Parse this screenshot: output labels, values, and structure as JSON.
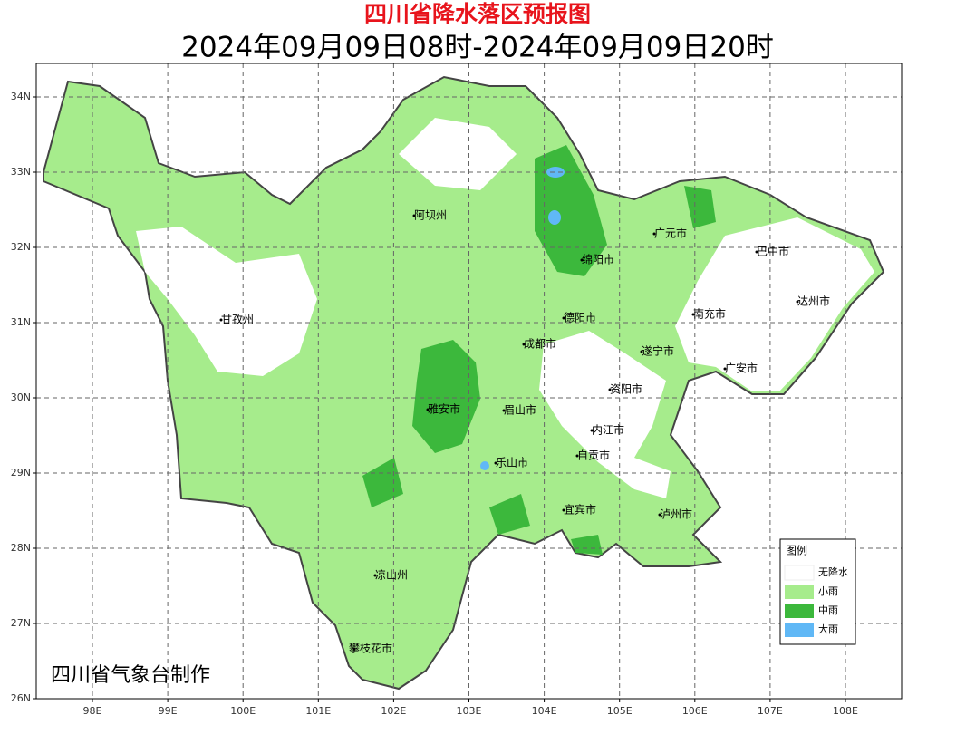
{
  "header": {
    "title": "四川省降水落区预报图",
    "subtitle": "2024年09月09日08时-2024年09月09日20时"
  },
  "map": {
    "lat_labels": [
      "26N",
      "27N",
      "28N",
      "29N",
      "30N",
      "31N",
      "32N",
      "33N",
      "34N"
    ],
    "lon_labels": [
      "98E",
      "99E",
      "100E",
      "101E",
      "102E",
      "103E",
      "104E",
      "105E",
      "106E",
      "107E",
      "108E"
    ],
    "regions": [
      "阿坝州",
      "甘孜州",
      "广元市",
      "巴中市",
      "绵阳市",
      "达州市",
      "德阳市",
      "南充市",
      "成都市",
      "遂宁市",
      "广安市",
      "资阳市",
      "雅安市",
      "眉山市",
      "内江市",
      "自贡市",
      "乐山市",
      "宜宾市",
      "泸州市",
      "凉山州",
      "攀枝花市"
    ]
  },
  "legend": {
    "title": "图例",
    "items": [
      {
        "label": "无降水",
        "color": "#ffffff"
      },
      {
        "label": "小雨",
        "color": "#a6ec8c"
      },
      {
        "label": "中雨",
        "color": "#3cb83c"
      },
      {
        "label": "大雨",
        "color": "#60b8f6"
      }
    ]
  },
  "footer": "四川省气象台制作"
}
